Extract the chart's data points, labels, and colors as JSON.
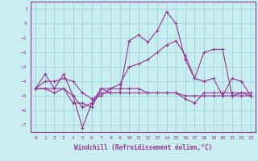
{
  "xlabel": "Windchill (Refroidissement éolien,°C)",
  "background_color": "#c8eef0",
  "grid_color": "#a0d8dc",
  "line_color": "#993399",
  "xlim": [
    -0.5,
    23.5
  ],
  "ylim": [
    -7.5,
    1.5
  ],
  "yticks": [
    1,
    0,
    -1,
    -2,
    -3,
    -4,
    -5,
    -6,
    -7
  ],
  "xticks": [
    0,
    1,
    2,
    3,
    4,
    5,
    6,
    7,
    8,
    9,
    10,
    11,
    12,
    13,
    14,
    15,
    16,
    17,
    18,
    19,
    20,
    21,
    22,
    23
  ],
  "lines": [
    {
      "x": [
        0,
        1,
        2,
        3,
        4,
        5,
        6,
        7,
        8,
        9,
        10,
        11,
        12,
        13,
        14,
        15,
        16,
        17,
        18,
        19,
        20,
        21,
        22,
        23
      ],
      "y": [
        -4.5,
        -4.5,
        -4.5,
        -4.5,
        -5.0,
        -5.8,
        -5.5,
        -4.8,
        -4.8,
        -4.8,
        -4.8,
        -4.8,
        -4.8,
        -4.8,
        -4.8,
        -4.8,
        -5.0,
        -5.0,
        -5.0,
        -5.0,
        -5.0,
        -5.0,
        -5.0,
        -5.0
      ]
    },
    {
      "x": [
        0,
        1,
        2,
        3,
        4,
        5,
        6,
        7,
        8,
        9,
        10,
        11,
        12,
        13,
        14,
        15,
        16,
        17,
        18,
        19,
        20,
        21,
        22,
        23
      ],
      "y": [
        -4.5,
        -4.5,
        -4.8,
        -4.5,
        -5.5,
        -5.5,
        -5.8,
        -4.5,
        -4.5,
        -4.5,
        -4.5,
        -4.5,
        -4.8,
        -4.8,
        -4.8,
        -4.8,
        -5.2,
        -5.5,
        -4.8,
        -4.8,
        -4.8,
        -4.8,
        -4.8,
        -4.8
      ]
    },
    {
      "x": [
        0,
        1,
        2,
        3,
        4,
        5,
        6,
        7,
        8,
        9,
        10,
        11,
        12,
        13,
        14,
        15,
        16,
        17,
        18,
        19,
        20,
        21,
        22,
        23
      ],
      "y": [
        -4.5,
        -3.5,
        -4.5,
        -3.5,
        -5.0,
        -7.2,
        -5.5,
        -4.5,
        -4.8,
        -4.8,
        -1.2,
        -0.8,
        -1.3,
        -0.5,
        0.8,
        0.0,
        -2.5,
        -3.8,
        -4.0,
        -3.8,
        -5.0,
        -3.8,
        -4.0,
        -5.0
      ]
    },
    {
      "x": [
        0,
        1,
        2,
        3,
        4,
        5,
        6,
        7,
        8,
        9,
        10,
        11,
        12,
        13,
        14,
        15,
        16,
        17,
        18,
        19,
        20,
        21,
        22,
        23
      ],
      "y": [
        -4.5,
        -4.0,
        -4.0,
        -3.8,
        -4.0,
        -4.8,
        -5.2,
        -5.0,
        -4.5,
        -4.2,
        -3.0,
        -2.8,
        -2.5,
        -2.0,
        -1.5,
        -1.2,
        -2.2,
        -3.8,
        -2.0,
        -1.8,
        -1.8,
        -5.0,
        -4.8,
        -5.0
      ]
    }
  ]
}
